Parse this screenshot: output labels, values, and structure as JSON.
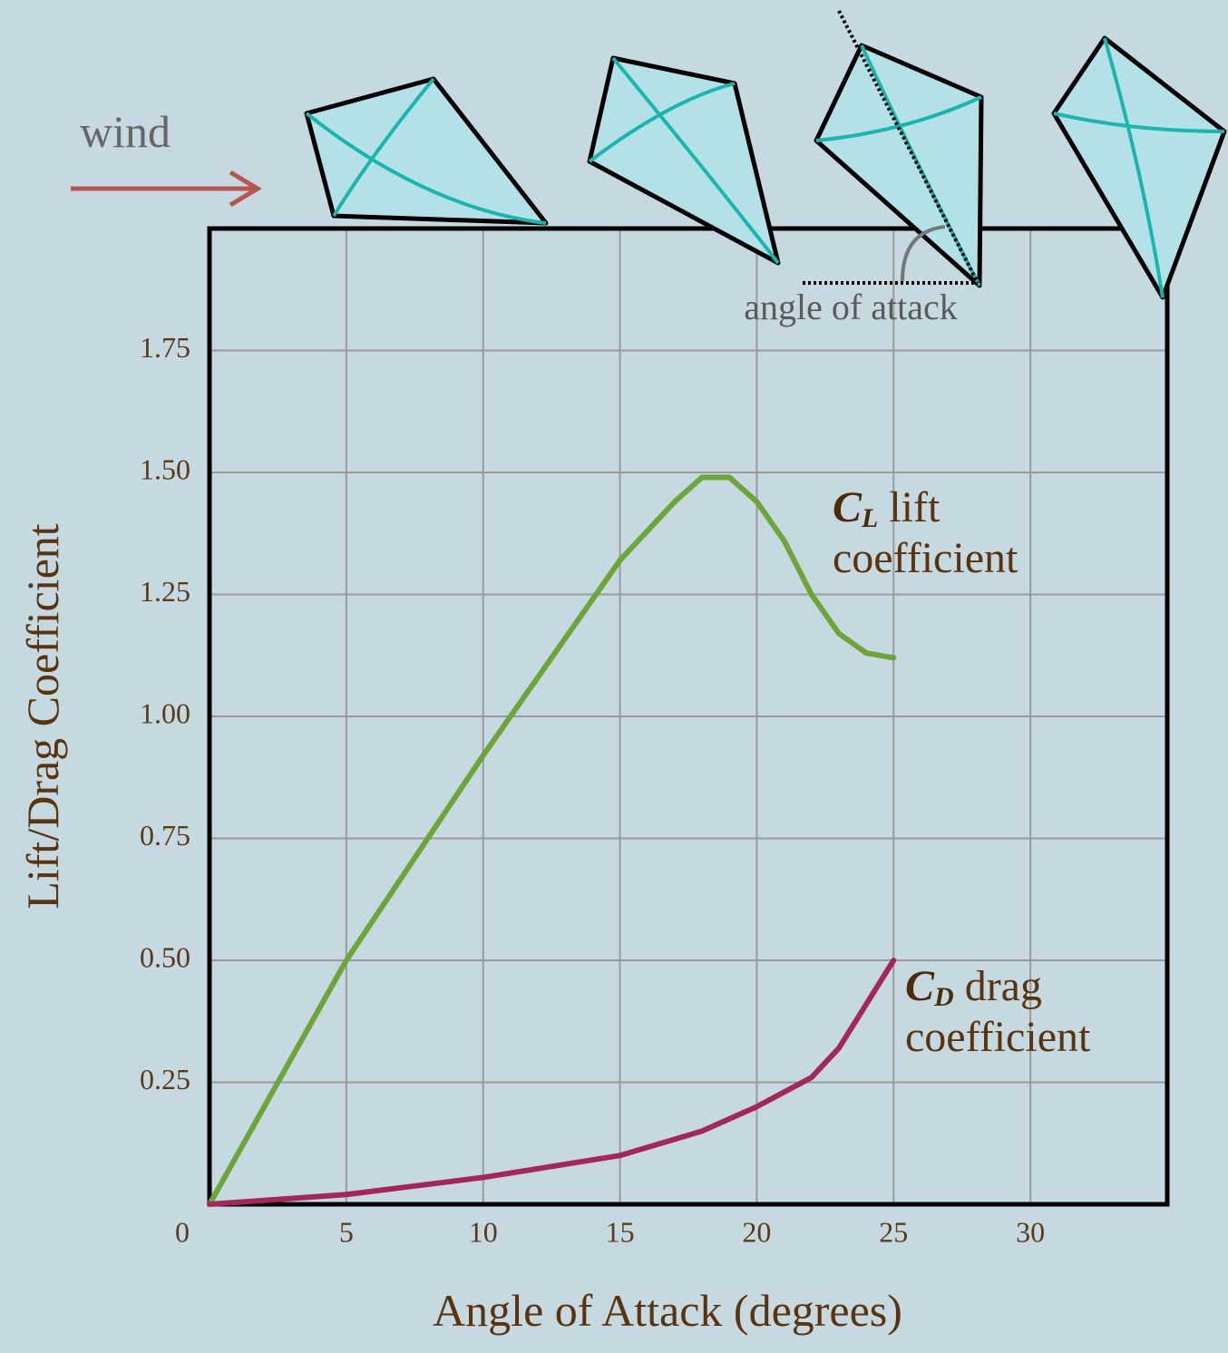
{
  "chart_data": {
    "type": "line",
    "x_label": "Angle of Attack (degrees)",
    "y_label": "Lift/Drag Coefficient",
    "annotations": [
      "wind",
      "angle of attack"
    ],
    "xlim": [
      0,
      35
    ],
    "ylim": [
      0,
      2
    ],
    "xticks": [
      0,
      5,
      10,
      15,
      20,
      25,
      30
    ],
    "yticks": [
      0.25,
      {
        "value": 0.5,
        "label": "0.50"
      },
      0.75,
      {
        "value": 1,
        "label": "1.00"
      },
      1.25,
      {
        "value": 1.5,
        "label": "1.50"
      },
      1.75
    ],
    "grid": true,
    "series": [
      {
        "name": "lift coefficient",
        "symbol": "C",
        "subscript": "L",
        "color": "#6ca53a",
        "x": [
          0,
          5,
          10,
          15,
          17,
          18,
          19,
          20,
          21,
          22,
          23,
          24,
          25
        ],
        "values": [
          0,
          0.5,
          0.92,
          1.32,
          1.44,
          1.49,
          1.49,
          1.44,
          1.36,
          1.25,
          1.17,
          1.13,
          1.12
        ]
      },
      {
        "name": "drag coefficient",
        "symbol": "C",
        "subscript": "D",
        "color": "#a3285a",
        "x": [
          0,
          5,
          10,
          15,
          18,
          20,
          22,
          23,
          24,
          25
        ],
        "values": [
          0,
          0.02,
          0.055,
          0.1,
          0.15,
          0.2,
          0.26,
          0.32,
          0.41,
          0.5
        ]
      }
    ]
  }
}
